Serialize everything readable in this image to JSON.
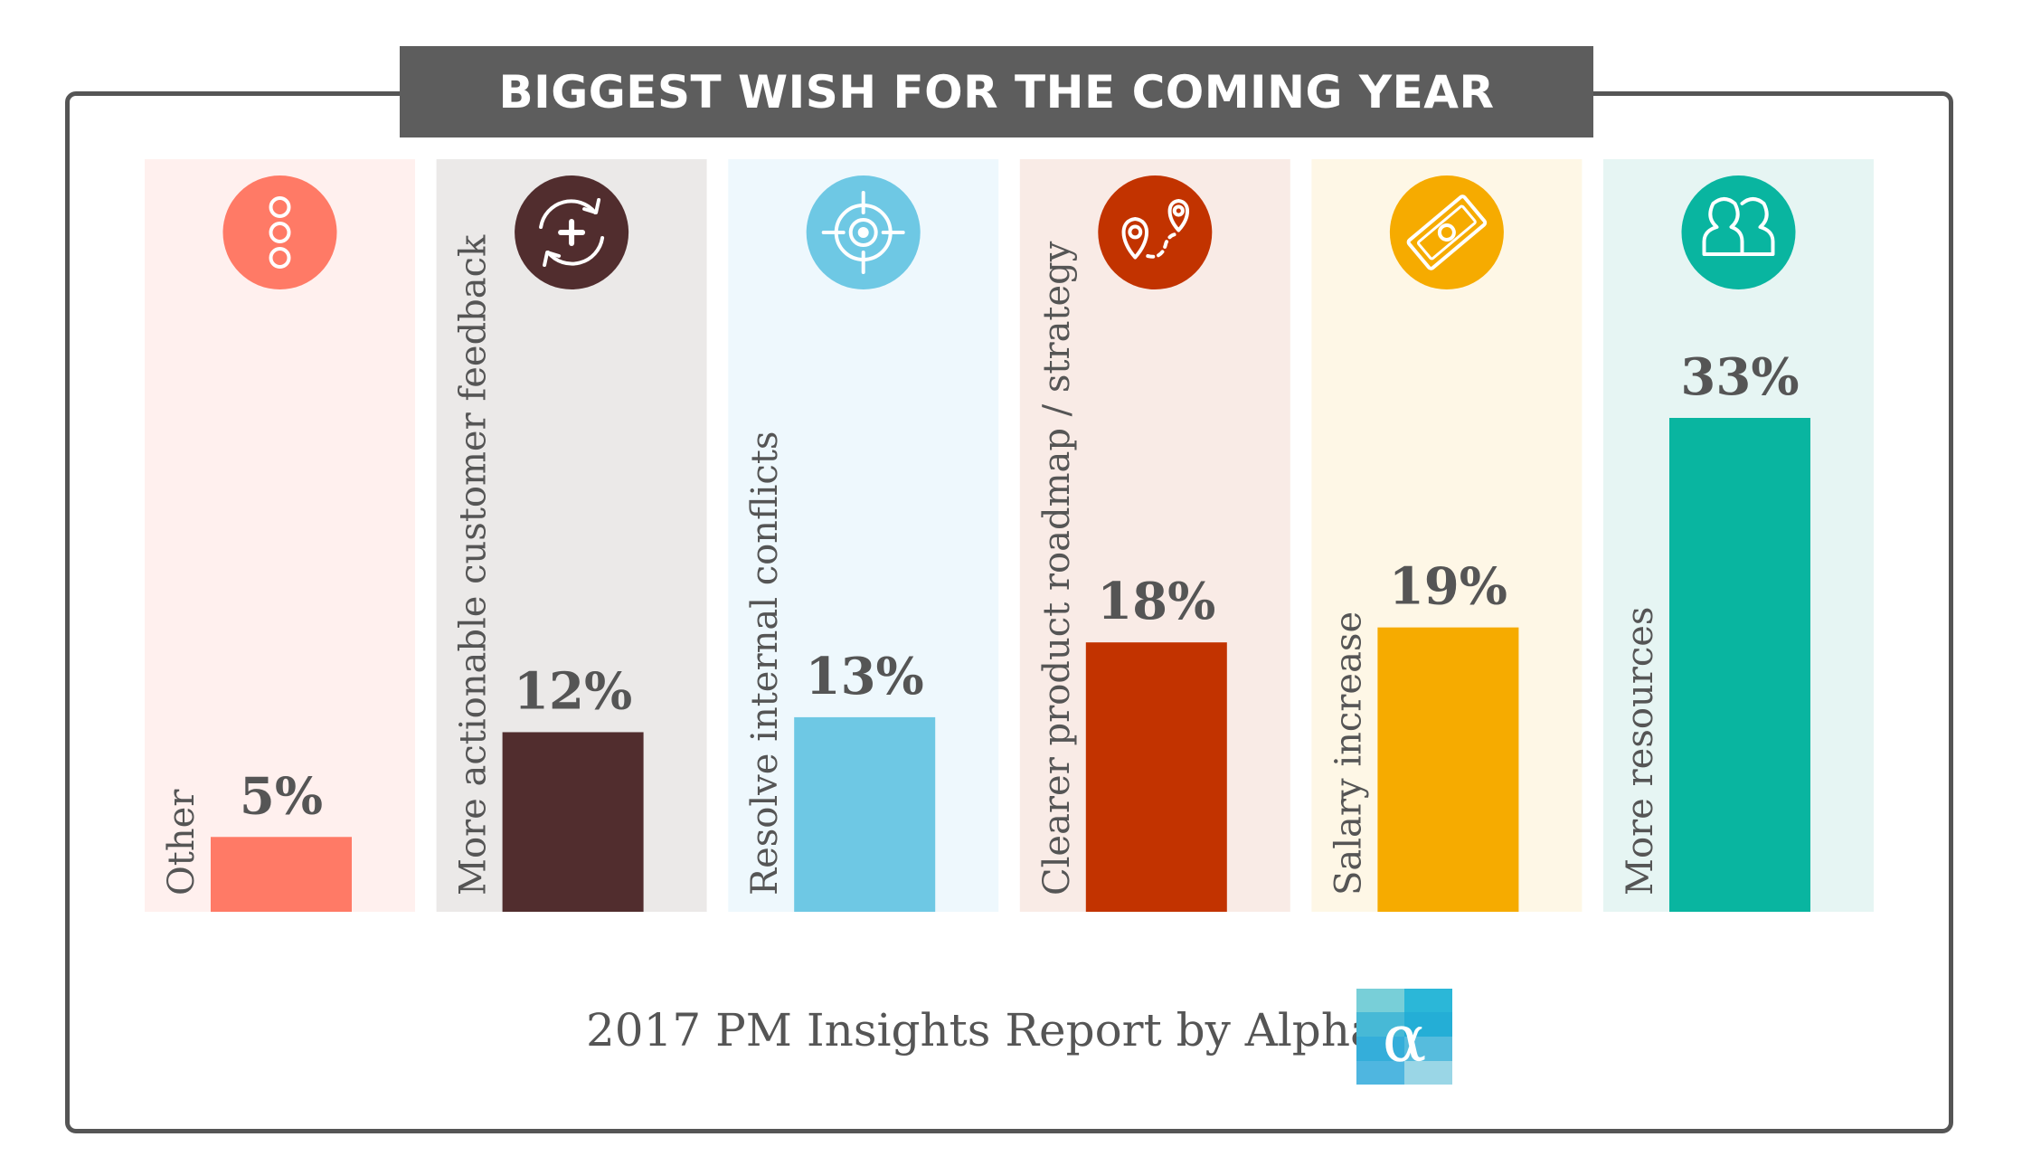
{
  "title": "BIGGEST WISH FOR THE COMING YEAR",
  "footer": {
    "text": "2017 PM Insights Report by Alpha",
    "logo_letter": "α"
  },
  "chart_data": {
    "type": "bar",
    "title": "BIGGEST WISH FOR THE COMING YEAR",
    "categories": [
      "Other",
      "More actionable customer feedback",
      "Resolve internal conflicts",
      "Clearer product roadmap / strategy",
      "Salary increase",
      "More resources"
    ],
    "values": [
      5,
      12,
      13,
      18,
      19,
      33
    ],
    "value_labels": [
      "5%",
      "12%",
      "13%",
      "18%",
      "19%",
      "33%"
    ],
    "unit": "%",
    "ylim": [
      0,
      33
    ],
    "grid": false,
    "legend": "none",
    "colors": [
      "#ff7a66",
      "#512d2e",
      "#6ec8e4",
      "#c23300",
      "#f6ab00",
      "#09b5a0"
    ],
    "panel_colors": [
      "#fff0ee",
      "#ebe9e8",
      "#eef8fd",
      "#f9ebe6",
      "#fef7e6",
      "#e6f5f3"
    ],
    "icons": [
      "three-dots-icon",
      "refresh-plus-icon",
      "target-icon",
      "route-pins-icon",
      "money-bill-icon",
      "people-icon"
    ]
  }
}
